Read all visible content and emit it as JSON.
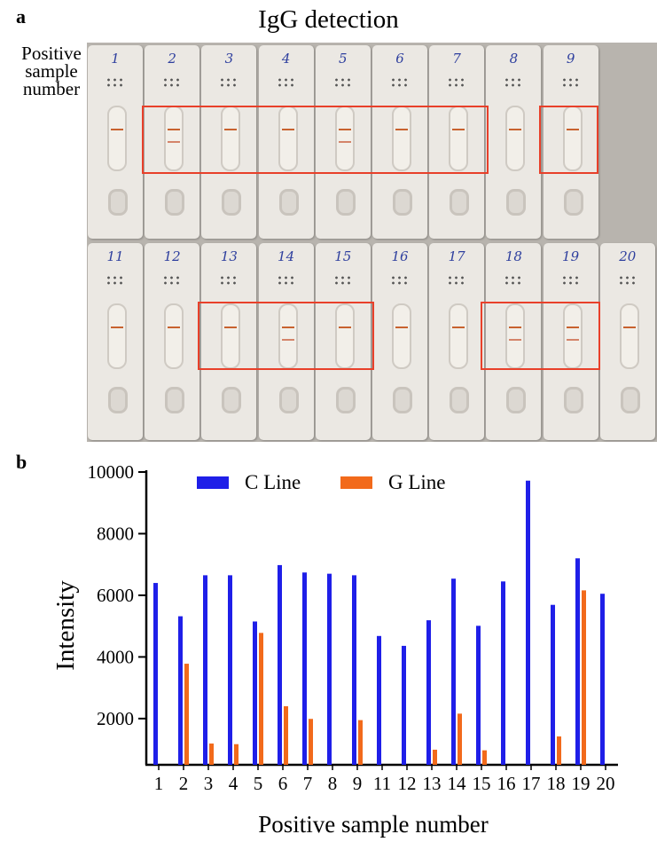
{
  "panel_a": {
    "letter": "a",
    "title": "IgG detection",
    "side_label": [
      "Positive",
      "sample",
      "number"
    ],
    "row1": [
      {
        "num": "1",
        "c": true,
        "g": false
      },
      {
        "num": "2",
        "c": true,
        "g": true
      },
      {
        "num": "3",
        "c": true,
        "g": false
      },
      {
        "num": "4",
        "c": true,
        "g": false
      },
      {
        "num": "5",
        "c": true,
        "g": true
      },
      {
        "num": "6",
        "c": true,
        "g": false
      },
      {
        "num": "7",
        "c": true,
        "g": false
      },
      {
        "num": "8",
        "c": true,
        "g": false
      },
      {
        "num": "9",
        "c": true,
        "g": false
      }
    ],
    "row2": [
      {
        "num": "11",
        "c": true,
        "g": false
      },
      {
        "num": "12",
        "c": true,
        "g": false
      },
      {
        "num": "13",
        "c": true,
        "g": false
      },
      {
        "num": "14",
        "c": true,
        "g": true
      },
      {
        "num": "15",
        "c": true,
        "g": false
      },
      {
        "num": "16",
        "c": true,
        "g": false
      },
      {
        "num": "17",
        "c": true,
        "g": false
      },
      {
        "num": "18",
        "c": true,
        "g": true
      },
      {
        "num": "19",
        "c": true,
        "g": true
      },
      {
        "num": "20",
        "c": true,
        "g": false
      }
    ],
    "highlight_color": "#e8402a"
  },
  "panel_b": {
    "letter": "b"
  },
  "chart_data": {
    "type": "bar",
    "categories": [
      "1",
      "2",
      "3",
      "4",
      "5",
      "6",
      "7",
      "8",
      "9",
      "11",
      "12",
      "13",
      "14",
      "15",
      "16",
      "17",
      "18",
      "19",
      "20"
    ],
    "series": [
      {
        "name": "C Line",
        "color": "#1f1fe8",
        "values": [
          6400,
          5320,
          6650,
          6650,
          5150,
          6980,
          6740,
          6700,
          6650,
          4680,
          4360,
          5190,
          6540,
          5010,
          6450,
          9720,
          5690,
          7200,
          6050
        ]
      },
      {
        "name": "G Line",
        "color": "#f26a1b",
        "values": [
          null,
          3780,
          1190,
          1170,
          4780,
          2400,
          1990,
          null,
          1950,
          null,
          null,
          990,
          2160,
          970,
          null,
          null,
          1420,
          6160,
          null
        ]
      }
    ],
    "xlabel": "Positive sample number",
    "ylabel": "Intensity",
    "ylim": [
      500,
      10000
    ],
    "yticks": [
      2000,
      4000,
      6000,
      8000,
      10000
    ],
    "legend_position": "top",
    "grid": false
  }
}
